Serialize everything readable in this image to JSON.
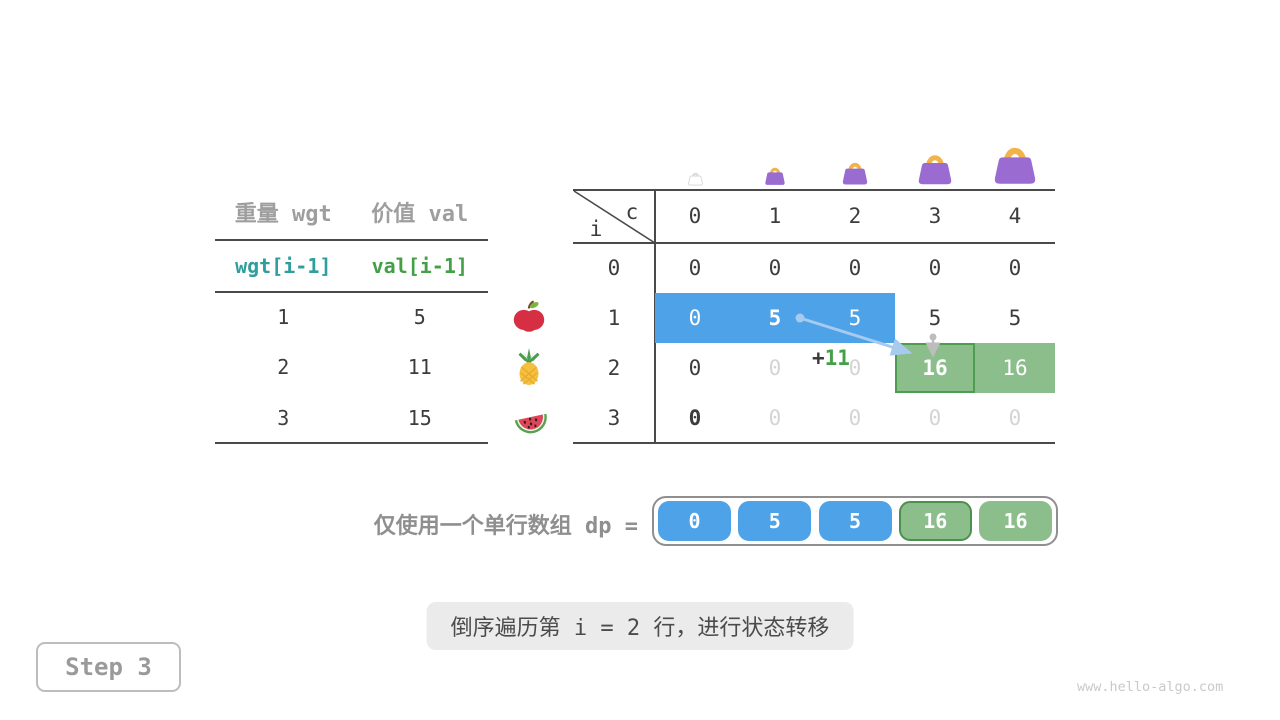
{
  "colors": {
    "blue": "#4DA2E8",
    "green": "#8CBE8C",
    "greenBorder": "#4E9B52",
    "greenText": "#43A047",
    "teal": "#2F9E9D",
    "grayText": "#9E9E9E",
    "dark": "#3C3C3C",
    "faded": "#D4D4D4",
    "line": "#4A4A4A",
    "bagPurple": "#9A6CD2",
    "bagHandle": "#F2B44A",
    "arrowBlue": "#A6CBEE",
    "arrowGray": "#BDBDBD"
  },
  "items_table": {
    "col_headers": [
      "重量 wgt",
      "价值 val"
    ],
    "sub_headers": [
      {
        "text": "wgt[i-1]",
        "tone": "teal"
      },
      {
        "text": "val[i-1]",
        "tone": "green"
      }
    ],
    "rows": [
      {
        "wgt": "1",
        "val": "5",
        "icon": "apple"
      },
      {
        "wgt": "2",
        "val": "11",
        "icon": "pineapple"
      },
      {
        "wgt": "3",
        "val": "15",
        "icon": "watermelon"
      }
    ]
  },
  "dp_table": {
    "corner": {
      "row_var": "i",
      "col_var": "c"
    },
    "col_headers": [
      "0",
      "1",
      "2",
      "3",
      "4"
    ],
    "row_headers": [
      "0",
      "1",
      "2",
      "3"
    ],
    "bags": [
      {
        "capacity": "0",
        "ghost": true
      },
      {
        "capacity": "1",
        "ghost": false
      },
      {
        "capacity": "2",
        "ghost": false
      },
      {
        "capacity": "3",
        "ghost": false
      },
      {
        "capacity": "4",
        "ghost": false
      }
    ],
    "cells": [
      [
        {
          "t": "0",
          "s": "dark"
        },
        {
          "t": "0",
          "s": "dark"
        },
        {
          "t": "0",
          "s": "dark"
        },
        {
          "t": "0",
          "s": "dark"
        },
        {
          "t": "0",
          "s": "dark"
        }
      ],
      [
        {
          "t": "0",
          "s": "white",
          "bg": "blue"
        },
        {
          "t": "5",
          "s": "white-bold",
          "bg": "blue"
        },
        {
          "t": "5",
          "s": "white",
          "bg": "blue"
        },
        {
          "t": "5",
          "s": "dark"
        },
        {
          "t": "5",
          "s": "dark"
        }
      ],
      [
        {
          "t": "0",
          "s": "dark"
        },
        {
          "t": "0",
          "s": "faded"
        },
        {
          "t": "0",
          "s": "faded"
        },
        {
          "t": "16",
          "s": "white-bold",
          "bg": "green-bordered"
        },
        {
          "t": "16",
          "s": "white",
          "bg": "green"
        }
      ],
      [
        {
          "t": "0",
          "s": "dark-bold"
        },
        {
          "t": "0",
          "s": "faded"
        },
        {
          "t": "0",
          "s": "faded"
        },
        {
          "t": "0",
          "s": "faded"
        },
        {
          "t": "0",
          "s": "faded"
        }
      ]
    ]
  },
  "annotation": {
    "plus": "+",
    "value": "11"
  },
  "dp_array": {
    "label": "仅使用一个单行数组 dp =",
    "boxes": [
      {
        "v": "0",
        "tone": "blue"
      },
      {
        "v": "5",
        "tone": "blue"
      },
      {
        "v": "5",
        "tone": "blue"
      },
      {
        "v": "16",
        "tone": "green-bordered"
      },
      {
        "v": "16",
        "tone": "green"
      }
    ]
  },
  "caption": "倒序遍历第 i = 2 行，进行状态转移",
  "step_label": "Step 3",
  "watermark": "www.hello-algo.com"
}
